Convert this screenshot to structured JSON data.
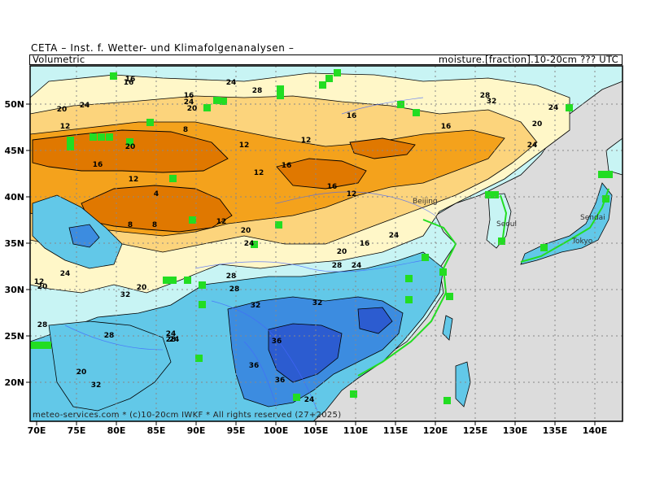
{
  "header": {
    "source": "CETA – Inst. f. Wetter- und Klimafolgenanalysen –",
    "field_type": "Volumetric",
    "variable": "moisture.[fraction].10-20cm ??? UTC"
  },
  "credit": "meteo-services.com * (c)10-20cm IWKF * All rights reserved (27+2025)",
  "axes": {
    "lon_labels": [
      "70E",
      "75E",
      "80E",
      "85E",
      "90E",
      "95E",
      "100E",
      "105E",
      "110E",
      "115E",
      "120E",
      "125E",
      "130E",
      "135E",
      "140E"
    ],
    "lat_labels": [
      "50N",
      "45N",
      "40N",
      "35N",
      "30N",
      "25N",
      "20N"
    ]
  },
  "cities": [
    {
      "name": "Beijing"
    },
    {
      "name": "Seoul"
    },
    {
      "name": "Sendai"
    },
    {
      "name": "Tokyo"
    }
  ],
  "contour_labels": [
    "16",
    "20",
    "24",
    "16",
    "28",
    "24",
    "20",
    "24",
    "12",
    "16",
    "8",
    "16",
    "12",
    "20",
    "12",
    "16",
    "12",
    "12",
    "16",
    "8",
    "12",
    "4",
    "16",
    "12",
    "8",
    "20",
    "24",
    "28",
    "20",
    "24",
    "16",
    "24",
    "20",
    "28",
    "24",
    "32",
    "28",
    "20",
    "24",
    "32",
    "28",
    "36",
    "32",
    "36",
    "36",
    "32",
    "24",
    "28",
    "32",
    "24",
    "20",
    "24",
    "28",
    "24",
    "12",
    "28",
    "20",
    "16"
  ],
  "colors": {
    "ocean": "#dcdcdc",
    "very_dry": "#e07800",
    "dry": "#f4a21c",
    "moderate_dry": "#fcd47c",
    "moderate": "#fff7c8",
    "moist": "#c8f4f4",
    "wet": "#62c8e8",
    "very_wet": "#3c8ce0",
    "saturated": "#2c5cd0",
    "water_flag": "#22dd22",
    "rivers": "#4466ff"
  }
}
